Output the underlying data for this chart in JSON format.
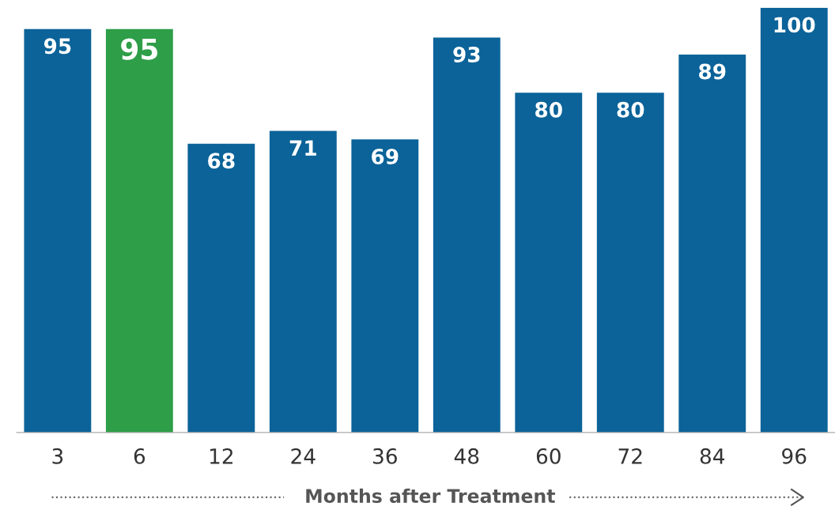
{
  "chart_data": {
    "type": "bar",
    "xlabel": "Months after Treatment",
    "categories": [
      "3",
      "6",
      "12",
      "24",
      "36",
      "48",
      "60",
      "72",
      "84",
      "96"
    ],
    "values": [
      95,
      95,
      68,
      71,
      69,
      93,
      80,
      80,
      89,
      100
    ],
    "colors": [
      "#0b6399",
      "#2e9e48",
      "#0b6399",
      "#0b6399",
      "#0b6399",
      "#0b6399",
      "#0b6399",
      "#0b6399",
      "#0b6399",
      "#0b6399"
    ],
    "data_labels": true,
    "grid": false,
    "legend": false
  }
}
